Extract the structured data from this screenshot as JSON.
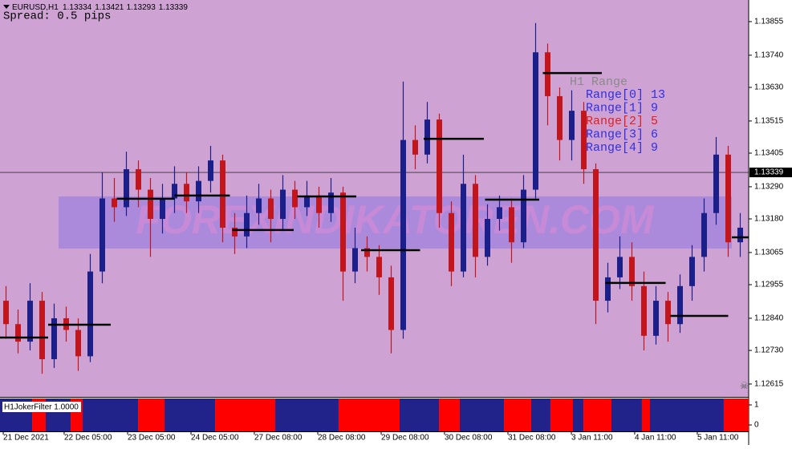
{
  "chart_data": {
    "type": "candlestick",
    "symbol": "EURUSD,H1",
    "header_prices": [
      1.13334,
      1.13421,
      1.13293,
      1.13339
    ],
    "spread_text": "Spread: 0.5 pips",
    "watermark": "FOREXINDIKATOREN.COM",
    "background": "#cea3d4",
    "up_color": "#1b1f8a",
    "down_color": "#c3161c",
    "ylim": [
      1.12571,
      1.13929
    ],
    "yticks": [
      1.12615,
      {
        "value": 1.1273,
        "label": "1.12730"
      },
      {
        "value": 1.1284,
        "label": "1.12840"
      },
      1.12955,
      1.13065,
      {
        "value": 1.1318,
        "label": "1.13180"
      },
      {
        "value": 1.1329,
        "label": "1.13290"
      },
      1.13405,
      1.13515,
      {
        "value": 1.1363,
        "label": "1.13630"
      },
      {
        "value": 1.1374,
        "label": "1.13740"
      },
      1.13855
    ],
    "current_price": 1.13339,
    "xlim": [
      0,
      62.2
    ],
    "xticks": [
      {
        "value": 0.27,
        "label": "21 Dec 2021"
      },
      {
        "value": 5.33,
        "label": "22 Dec 05:00"
      },
      {
        "value": 10.6,
        "label": "23 Dec 05:00"
      },
      {
        "value": 15.87,
        "label": "24 Dec 05:00"
      },
      {
        "value": 21.13,
        "label": "27 Dec 08:00"
      },
      {
        "value": 26.4,
        "label": "28 Dec 08:00"
      },
      {
        "value": 31.67,
        "label": "29 Dec 08:00"
      },
      {
        "value": 36.93,
        "label": "30 Dec 08:00"
      },
      {
        "value": 42.2,
        "label": "31 Dec 08:00"
      },
      {
        "value": 47.47,
        "label": "3 Jan 11:00"
      },
      {
        "value": 52.73,
        "label": "4 Jan 11:00"
      },
      {
        "value": 57.93,
        "label": "5 Jan 11:00"
      }
    ],
    "open": [
      1.129,
      1.1282,
      1.1276,
      1.129,
      1.127,
      1.1284,
      1.128,
      1.1271,
      1.13,
      1.1325,
      1.1322,
      1.1335,
      1.1328,
      1.1318,
      1.1325,
      1.133,
      1.1324,
      1.1331,
      1.1338,
      1.1315,
      1.1312,
      1.132,
      1.1325,
      1.1318,
      1.1328,
      1.1322,
      1.1326,
      1.132,
      1.1327,
      1.13,
      1.1308,
      1.1305,
      1.1298,
      1.128,
      1.1345,
      1.134,
      1.1352,
      1.132,
      1.13,
      1.133,
      1.1305,
      1.1318,
      1.1322,
      1.131,
      1.1328,
      1.1375,
      1.136,
      1.1345,
      1.1355,
      1.1335,
      1.129,
      1.1298,
      1.1305,
      1.1295,
      1.1278,
      1.129,
      1.1282,
      1.1295,
      1.1305,
      1.132,
      1.134,
      1.131
    ],
    "high": [
      1.1295,
      1.1287,
      1.1296,
      1.1293,
      1.1289,
      1.1288,
      1.1284,
      1.1306,
      1.1334,
      1.1332,
      1.1341,
      1.1338,
      1.1332,
      1.133,
      1.1336,
      1.1334,
      1.1336,
      1.1343,
      1.134,
      1.132,
      1.1326,
      1.133,
      1.1328,
      1.1333,
      1.1331,
      1.1331,
      1.1329,
      1.1332,
      1.1329,
      1.1315,
      1.1312,
      1.1309,
      1.1302,
      1.1365,
      1.135,
      1.1358,
      1.1354,
      1.1324,
      1.134,
      1.1333,
      1.1323,
      1.1326,
      1.1325,
      1.1333,
      1.1385,
      1.1378,
      1.1363,
      1.1362,
      1.1358,
      1.1337,
      1.1303,
      1.1312,
      1.131,
      1.13,
      1.1295,
      1.1293,
      1.1299,
      1.1309,
      1.1325,
      1.1346,
      1.1343,
      1.132
    ],
    "low": [
      1.1277,
      1.1272,
      1.1273,
      1.1265,
      1.1267,
      1.1276,
      1.1266,
      1.1269,
      1.1296,
      1.1317,
      1.1319,
      1.1322,
      1.1305,
      1.1313,
      1.132,
      1.132,
      1.132,
      1.1327,
      1.131,
      1.1306,
      1.1308,
      1.1316,
      1.131,
      1.1314,
      1.1318,
      1.1319,
      1.1315,
      1.1317,
      1.129,
      1.1296,
      1.13,
      1.1292,
      1.1272,
      1.1277,
      1.1335,
      1.1337,
      1.1315,
      1.1295,
      1.1298,
      1.1298,
      1.1302,
      1.1314,
      1.1303,
      1.1308,
      1.1325,
      1.135,
      1.1338,
      1.1338,
      1.133,
      1.1282,
      1.1286,
      1.1294,
      1.129,
      1.1273,
      1.1275,
      1.1276,
      1.1279,
      1.129,
      1.13,
      1.1316,
      1.1305,
      1.1305
    ],
    "close": [
      1.1282,
      1.1276,
      1.129,
      1.127,
      1.1284,
      1.128,
      1.1271,
      1.13,
      1.1325,
      1.1322,
      1.1335,
      1.1328,
      1.1318,
      1.1325,
      1.133,
      1.1324,
      1.1331,
      1.1338,
      1.1315,
      1.1312,
      1.132,
      1.1325,
      1.1318,
      1.1328,
      1.1322,
      1.1326,
      1.132,
      1.1327,
      1.13,
      1.1308,
      1.1305,
      1.1298,
      1.128,
      1.1345,
      1.134,
      1.1352,
      1.132,
      1.13,
      1.133,
      1.1305,
      1.1318,
      1.1322,
      1.131,
      1.1328,
      1.1375,
      1.136,
      1.1345,
      1.1355,
      1.1335,
      1.129,
      1.1298,
      1.1305,
      1.1295,
      1.1278,
      1.129,
      1.1282,
      1.1295,
      1.1305,
      1.132,
      1.134,
      1.131,
      1.1315
    ],
    "levels": [
      {
        "start": 0,
        "end": 4,
        "price": 1.12774
      },
      {
        "start": 4,
        "end": 9.2,
        "price": 1.12818
      },
      {
        "start": 9.7,
        "end": 14.5,
        "price": 1.13249
      },
      {
        "start": 14.5,
        "end": 19.1,
        "price": 1.1326
      },
      {
        "start": 19.3,
        "end": 24.4,
        "price": 1.13142
      },
      {
        "start": 24.7,
        "end": 29.6,
        "price": 1.13257
      },
      {
        "start": 30,
        "end": 34.9,
        "price": 1.13073
      },
      {
        "start": 35.2,
        "end": 40.2,
        "price": 1.13454
      },
      {
        "start": 40.3,
        "end": 44.8,
        "price": 1.13246
      },
      {
        "start": 45.1,
        "end": 50,
        "price": 1.13679
      },
      {
        "start": 50.3,
        "end": 55.3,
        "price": 1.12961
      },
      {
        "start": 55.7,
        "end": 60.5,
        "price": 1.12848
      },
      {
        "start": 60.8,
        "end": 62.2,
        "price": 1.13117
      }
    ],
    "range_panel": {
      "title": "H1 Range",
      "title_color": "#8a8a8a",
      "rows": [
        {
          "label": "Range[0]",
          "value": 13,
          "color": "#3030e0"
        },
        {
          "label": "Range[1]",
          "value": 9,
          "color": "#3030e0"
        },
        {
          "label": "Range[2]",
          "value": 5,
          "color": "#e02020"
        },
        {
          "label": "Range[3]",
          "value": 6,
          "color": "#3030e0"
        },
        {
          "label": "Range[4]",
          "value": 9,
          "color": "#3030e0"
        }
      ]
    },
    "indicator": {
      "name": "H1JokerFilter 1.0000",
      "ylim": [
        0,
        1
      ],
      "yticks": [
        0,
        1
      ],
      "value_colors": [
        "#22238a",
        "#ff0000"
      ],
      "edges": [
        0,
        2.67,
        3.8,
        5.87,
        6.87,
        11.47,
        13.67,
        17.87,
        22.87,
        28.13,
        33.2,
        36.47,
        38.2,
        41.87,
        44.13,
        45.73,
        47.6,
        48.47,
        50.8,
        53.33,
        54,
        60.13,
        62.2
      ],
      "values": [
        0,
        1,
        0,
        1,
        0,
        1,
        0,
        1,
        0,
        1,
        0,
        1,
        0,
        1,
        0,
        1,
        0,
        1,
        0,
        1,
        0,
        1
      ]
    }
  }
}
